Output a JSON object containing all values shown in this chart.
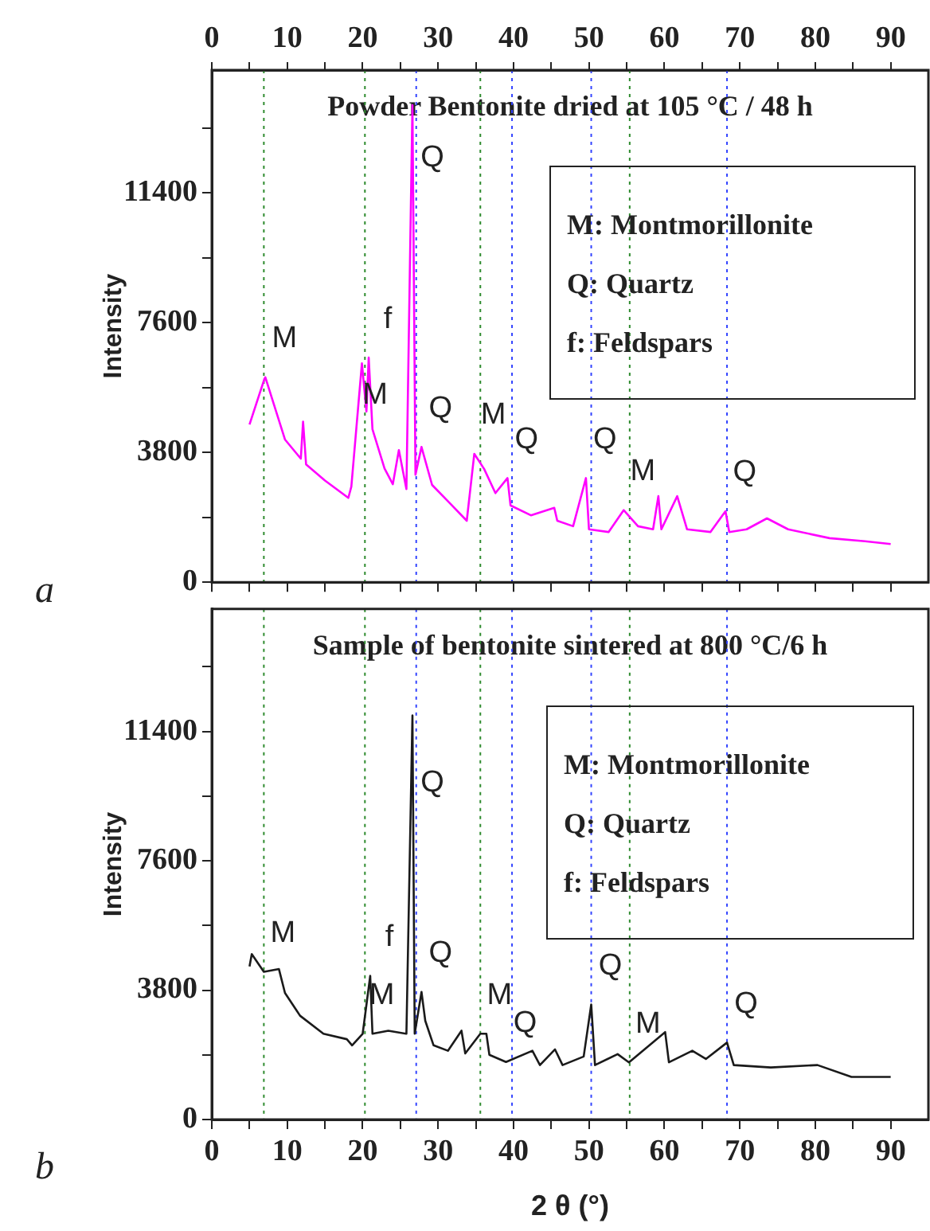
{
  "chart_data": [
    {
      "type": "line",
      "title": "Powder Bentonite dried at 105 °C / 48 h",
      "ylabel": "Intensity",
      "xlim": [
        0,
        95
      ],
      "xticks": [
        0,
        {
          "value": 5,
          "label": null
        },
        10,
        {
          "value": 15,
          "label": null
        },
        20,
        {
          "value": 25,
          "label": null
        },
        30,
        {
          "value": 35,
          "label": null
        },
        40,
        {
          "value": 45,
          "label": null
        },
        50,
        {
          "value": 55,
          "label": null
        },
        60,
        {
          "value": 65,
          "label": null
        },
        70,
        {
          "value": 75,
          "label": null
        },
        80,
        {
          "value": 85,
          "label": null
        },
        90
      ],
      "tick_labels": "y",
      "x2lim": [
        0,
        95
      ],
      "x2ticks": [
        0,
        {
          "value": 5,
          "label": null
        },
        10,
        {
          "value": 15,
          "label": null
        },
        20,
        {
          "value": 25,
          "label": null
        },
        30,
        {
          "value": 35,
          "label": null
        },
        40,
        {
          "value": 45,
          "label": null
        },
        50,
        {
          "value": 55,
          "label": null
        },
        60,
        {
          "value": 65,
          "label": null
        },
        70,
        {
          "value": 75,
          "label": null
        },
        80,
        {
          "value": 85,
          "label": null
        },
        90
      ],
      "ylim": [
        0,
        15000
      ],
      "yticks": [
        0,
        {
          "value": 1900,
          "label": null
        },
        3800,
        {
          "value": 5700,
          "label": null
        },
        7600,
        {
          "value": 9500,
          "label": null
        },
        11400,
        {
          "value": 13300,
          "label": null
        }
      ],
      "grid": false,
      "legend": false,
      "marker": "none",
      "line_style": "solid",
      "series": [
        {
          "color": "#ff00ff",
          "x": [
            5,
            7,
            7.1,
            9.7,
            11.8,
            12.1,
            12.5,
            15,
            18.1,
            18.5,
            19.9,
            20.5,
            20.8,
            21.3,
            22.9,
            24,
            24.8,
            25.8,
            26.6,
            27,
            27.8,
            29.2,
            31.5,
            33.8,
            34.8,
            36.1,
            37.6,
            39.2,
            39.6,
            42.3,
            45.4,
            45.8,
            47.9,
            49.6,
            50,
            52.6,
            54.6,
            56.5,
            58.5,
            59.2,
            59.6,
            61.7,
            63,
            66.1,
            68.1,
            68.6,
            70.9,
            73.6,
            76.4,
            81.9,
            86.6,
            90
          ],
          "values": [
            4620,
            5970,
            6000,
            4180,
            3620,
            4700,
            3450,
            2980,
            2470,
            2800,
            6410,
            5000,
            6580,
            4480,
            3330,
            2870,
            3870,
            2730,
            13970,
            3150,
            3960,
            2850,
            2330,
            1800,
            3760,
            3320,
            2610,
            3050,
            2250,
            1960,
            2180,
            1800,
            1640,
            3050,
            1550,
            1470,
            2110,
            1640,
            1550,
            2520,
            1550,
            2520,
            1550,
            1470,
            2080,
            1470,
            1550,
            1870,
            1550,
            1290,
            1200,
            1120
          ]
        }
      ],
      "ref_lines": [
        {
          "axis": "x",
          "value": 6.9,
          "color": "#2e8b2e",
          "line_style": "dotted"
        },
        {
          "axis": "x",
          "value": 20.3,
          "color": "#2e8b2e",
          "line_style": "dotted"
        },
        {
          "axis": "x",
          "value": 27.1,
          "color": "#3344ff",
          "line_style": "dotted"
        },
        {
          "axis": "x",
          "value": 35.6,
          "color": "#2e8b2e",
          "line_style": "dotted"
        },
        {
          "axis": "x",
          "value": 39.8,
          "color": "#3344ff",
          "line_style": "dotted"
        },
        {
          "axis": "x",
          "value": 50.3,
          "color": "#3344ff",
          "line_style": "dotted"
        },
        {
          "axis": "x",
          "value": 55.4,
          "color": "#2e8b2e",
          "line_style": "dotted"
        },
        {
          "axis": "x",
          "value": 68.3,
          "color": "#3344ff",
          "line_style": "dotted"
        }
      ],
      "annotations": [
        {
          "text": "M",
          "x": 7.1,
          "y": 6000
        },
        {
          "text": "M",
          "x": 19.1,
          "y": 4350
        },
        {
          "text": "f",
          "x": 20.8,
          "y": 6580
        },
        {
          "text": "Q",
          "x": 26.7,
          "y": 11300
        },
        {
          "text": "Q",
          "x": 27.8,
          "y": 3960
        },
        {
          "text": "M",
          "x": 34.8,
          "y": 3760
        },
        {
          "text": "Q",
          "x": 39.2,
          "y": 3050
        },
        {
          "text": "Q",
          "x": 49.6,
          "y": 3050
        },
        {
          "text": "M",
          "x": 54.6,
          "y": 2110
        },
        {
          "text": "Q",
          "x": 68.1,
          "y": 2080
        },
        "M: Montmorillonite",
        "Q: Quartz",
        "f: Feldspars",
        "a"
      ]
    },
    {
      "type": "line",
      "title": "Sample of bentonite sintered at 800 °C/6 h",
      "ylabel": "Intensity",
      "xlabel": "2 θ (°)",
      "xlim": [
        0,
        95
      ],
      "xticks": [
        0,
        {
          "value": 5,
          "label": null
        },
        10,
        {
          "value": 15,
          "label": null
        },
        20,
        {
          "value": 25,
          "label": null
        },
        30,
        {
          "value": 35,
          "label": null
        },
        40,
        {
          "value": 45,
          "label": null
        },
        50,
        {
          "value": 55,
          "label": null
        },
        60,
        {
          "value": 65,
          "label": null
        },
        70,
        {
          "value": 75,
          "label": null
        },
        80,
        {
          "value": 85,
          "label": null
        },
        90
      ],
      "ylim": [
        0,
        15000
      ],
      "yticks": [
        0,
        {
          "value": 1900,
          "label": null
        },
        3800,
        {
          "value": 5700,
          "label": null
        },
        7600,
        {
          "value": 9500,
          "label": null
        },
        11400,
        {
          "value": 13300,
          "label": null
        }
      ],
      "grid": false,
      "legend": false,
      "marker": "none",
      "line_style": "solid",
      "series": [
        {
          "color": "#1a1a1a",
          "x": [
            5,
            5.3,
            6.9,
            8.9,
            9.7,
            11.7,
            14.8,
            17.9,
            18.6,
            20,
            21,
            21.3,
            23.4,
            25.8,
            26.6,
            26.9,
            27.8,
            28.3,
            29.4,
            31.3,
            33.1,
            33.6,
            35.6,
            36.4,
            36.8,
            39,
            42.5,
            43.5,
            45.5,
            46.5,
            49.3,
            50.3,
            50.8,
            53.8,
            55.3,
            60.1,
            60.6,
            63.7,
            65.5,
            68.3,
            69.2,
            74.1,
            80.3,
            84.8,
            90
          ],
          "values": [
            4500,
            4860,
            4340,
            4420,
            3720,
            3050,
            2520,
            2360,
            2180,
            2520,
            4220,
            2520,
            2610,
            2520,
            11870,
            2520,
            3750,
            2900,
            2180,
            2020,
            2610,
            1940,
            2520,
            2520,
            1900,
            1690,
            2020,
            1600,
            2060,
            1600,
            1850,
            3380,
            1600,
            1920,
            1680,
            2570,
            1680,
            2020,
            1780,
            2260,
            1600,
            1530,
            1600,
            1250,
            1250
          ]
        }
      ],
      "ref_lines": [
        {
          "axis": "x",
          "value": 6.9,
          "color": "#2e8b2e",
          "line_style": "dotted"
        },
        {
          "axis": "x",
          "value": 20.3,
          "color": "#2e8b2e",
          "line_style": "dotted"
        },
        {
          "axis": "x",
          "value": 27.1,
          "color": "#3344ff",
          "line_style": "dotted"
        },
        {
          "axis": "x",
          "value": 35.6,
          "color": "#2e8b2e",
          "line_style": "dotted"
        },
        {
          "axis": "x",
          "value": 39.8,
          "color": "#3344ff",
          "line_style": "dotted"
        },
        {
          "axis": "x",
          "value": 50.3,
          "color": "#3344ff",
          "line_style": "dotted"
        },
        {
          "axis": "x",
          "value": 55.4,
          "color": "#2e8b2e",
          "line_style": "dotted"
        },
        {
          "axis": "x",
          "value": 68.3,
          "color": "#3344ff",
          "line_style": "dotted"
        }
      ],
      "annotations": [
        {
          "text": "M",
          "x": 6.9,
          "y": 4340
        },
        {
          "text": "M",
          "x": 20,
          "y": 2520
        },
        {
          "text": "f",
          "x": 21,
          "y": 4220
        },
        {
          "text": "Q",
          "x": 26.7,
          "y": 8750
        },
        {
          "text": "Q",
          "x": 27.8,
          "y": 3750
        },
        {
          "text": "M",
          "x": 35.6,
          "y": 2520
        },
        {
          "text": "Q",
          "x": 39,
          "y": 1690
        },
        {
          "text": "Q",
          "x": 50.3,
          "y": 3380
        },
        {
          "text": "M",
          "x": 55.3,
          "y": 1680
        },
        {
          "text": "Q",
          "x": 68.3,
          "y": 2260
        },
        "M: Montmorillonite",
        "Q: Quartz",
        "f: Feldspars",
        "b"
      ]
    }
  ]
}
